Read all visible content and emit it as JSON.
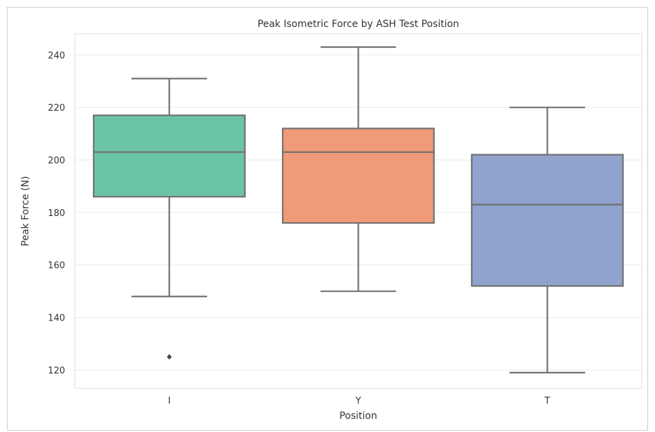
{
  "chart_data": {
    "type": "box",
    "title": "Peak Isometric Force by ASH Test Position",
    "xlabel": "Position",
    "ylabel": "Peak Force (N)",
    "ylim": [
      113,
      248
    ],
    "yticks": [
      120,
      140,
      160,
      180,
      200,
      220,
      240
    ],
    "grid": true,
    "categories": [
      "I",
      "Y",
      "T"
    ],
    "boxes": [
      {
        "category": "I",
        "whisker_low": 148,
        "q1": 186,
        "median": 203,
        "q3": 217,
        "whisker_high": 231,
        "outliers": [
          125
        ],
        "color": "#6cc4a6"
      },
      {
        "category": "Y",
        "whisker_low": 150,
        "q1": 176,
        "median": 203,
        "q3": 212,
        "whisker_high": 243,
        "outliers": [],
        "color": "#ef9a78"
      },
      {
        "category": "T",
        "whisker_low": 119,
        "q1": 152,
        "median": 183,
        "q3": 202,
        "whisker_high": 220,
        "outliers": [],
        "color": "#8fa3cd"
      }
    ],
    "line_color": "#707070"
  }
}
